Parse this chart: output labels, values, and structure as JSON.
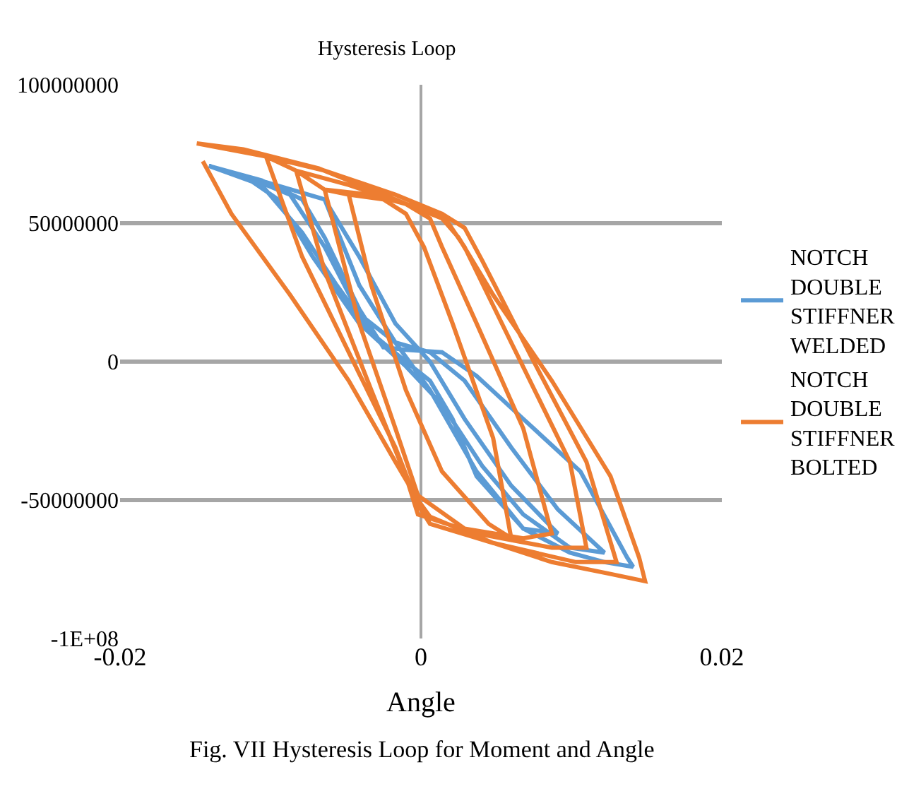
{
  "chart_data": {
    "type": "line",
    "title": "Hysteresis Loop",
    "xlabel": "Angle",
    "annotations": [
      "Fig. VII Hysteresis Loop for Moment and Angle"
    ],
    "xlim": [
      -0.02,
      0.02
    ],
    "xticks": [
      -0.02,
      0,
      0.02
    ],
    "ylim": [
      -100000000,
      100000000
    ],
    "yticks": [
      {
        "value": -100000000,
        "label": "-1E+08"
      },
      -50000000,
      0,
      50000000,
      100000000
    ],
    "grid": "y",
    "legend": "right",
    "marker": "none",
    "line_style": "solid",
    "series": [
      {
        "name": "NOTCH DOUBLE STIFFNER WELDED",
        "color": "#5b9bd5",
        "x": [
          -0.0141,
          -0.0106,
          -0.0079,
          -0.0064,
          -0.0041,
          -0.0025,
          -0.001,
          0.0014,
          0.0037,
          0.0068,
          0.0106,
          0.0137,
          0.0141,
          0.0122,
          0.0099,
          0.0068,
          0.0037,
          0.0021,
          0.0006,
          -0.001,
          -0.0033,
          -0.0056,
          -0.0079,
          -0.0106,
          -0.0141,
          -0.0118,
          -0.0087,
          -0.0064,
          -0.0041,
          -0.0017,
          0.0006,
          0.0029,
          0.006,
          0.0091,
          0.0122,
          0.0099,
          0.0068,
          0.0041,
          0.0014,
          -0.001,
          -0.0041,
          -0.0072,
          -0.0095,
          -0.0118,
          -0.0064,
          -0.0041,
          -0.0017,
          0.0006,
          0.0029,
          0.006,
          0.0091,
          0.0068,
          0.0037,
          0.0006,
          -0.0017,
          -0.0041,
          -0.0064
        ],
        "values": [
          70700000,
          65500000,
          58600000,
          44800000,
          19000000,
          5200000,
          4300000,
          3400000,
          -5200000,
          -20700000,
          -39700000,
          -70700000,
          -74100000,
          -72400000,
          -69000000,
          -60300000,
          -41400000,
          -20700000,
          -6900000,
          0,
          10300000,
          27600000,
          46600000,
          63800000,
          70700000,
          67200000,
          60300000,
          41400000,
          17200000,
          6900000,
          3400000,
          -6900000,
          -31000000,
          -53400000,
          -69000000,
          -67200000,
          -55200000,
          -37900000,
          -15500000,
          -1700000,
          13800000,
          37900000,
          58600000,
          67200000,
          58600000,
          37900000,
          13800000,
          0,
          -20700000,
          -44800000,
          -62100000,
          -60300000,
          -39700000,
          -10300000,
          6900000,
          27600000,
          58600000
        ]
      },
      {
        "name": "NOTCH DOUBLE STIFFNER BOLTED",
        "color": "#ed7d31",
        "x": [
          -0.0048,
          -0.0025,
          -0.001,
          0.0002,
          0.0021,
          0.0048,
          0.006,
          0.0045,
          0.0014,
          -0.001,
          -0.0033,
          -0.0048,
          -0.0064,
          -0.0033,
          -0.001,
          0.0006,
          0.0014,
          0.0037,
          0.0068,
          0.0087,
          0.0068,
          0.0029,
          -0.0002,
          -0.0017,
          -0.0041,
          -0.0064,
          -0.0083,
          -0.0048,
          -0.001,
          0.0014,
          0.0029,
          0.006,
          0.0099,
          0.011,
          0.0087,
          0.0037,
          -0.0002,
          -0.001,
          -0.0033,
          -0.0064,
          -0.0083,
          -0.0103,
          -0.0064,
          -0.0017,
          0.0014,
          0.0029,
          0.0041,
          0.0075,
          0.011,
          0.013,
          0.0103,
          0.0048,
          0.0006,
          -0.0002,
          -0.0017,
          -0.0048,
          -0.0079,
          -0.0103,
          -0.0149,
          -0.0118,
          -0.0068,
          -0.0029,
          0.0014,
          0.0025,
          0.0048,
          0.0087,
          0.0126,
          0.0145,
          0.0149,
          0.0126,
          0.0087,
          0.0048,
          0.0006,
          -0.0002,
          -0.0017,
          -0.0048,
          -0.0087,
          -0.0126,
          -0.0145
        ],
        "values": [
          60300000,
          58600000,
          53400000,
          41400000,
          13800000,
          -27600000,
          -63800000,
          -58600000,
          -39700000,
          -10300000,
          27600000,
          60300000,
          62100000,
          60300000,
          56900000,
          51700000,
          41400000,
          13800000,
          -24100000,
          -62100000,
          -63800000,
          -60300000,
          -48300000,
          -24100000,
          13800000,
          62100000,
          69000000,
          63800000,
          56900000,
          53400000,
          41400000,
          6900000,
          -36200000,
          -67200000,
          -67200000,
          -62100000,
          -55200000,
          -41400000,
          -10300000,
          32800000,
          69000000,
          74100000,
          69000000,
          60300000,
          53400000,
          48300000,
          36200000,
          0,
          -36200000,
          -72400000,
          -72400000,
          -65500000,
          -58600000,
          -51700000,
          -31000000,
          3400000,
          37900000,
          74100000,
          78800000,
          76700000,
          69800000,
          61200000,
          51700000,
          44800000,
          24100000,
          -6900000,
          -41400000,
          -70700000,
          -79300000,
          -76700000,
          -72400000,
          -65500000,
          -56000000,
          -50000000,
          -36200000,
          -6900000,
          24100000,
          53400000,
          72400000
        ]
      }
    ]
  }
}
